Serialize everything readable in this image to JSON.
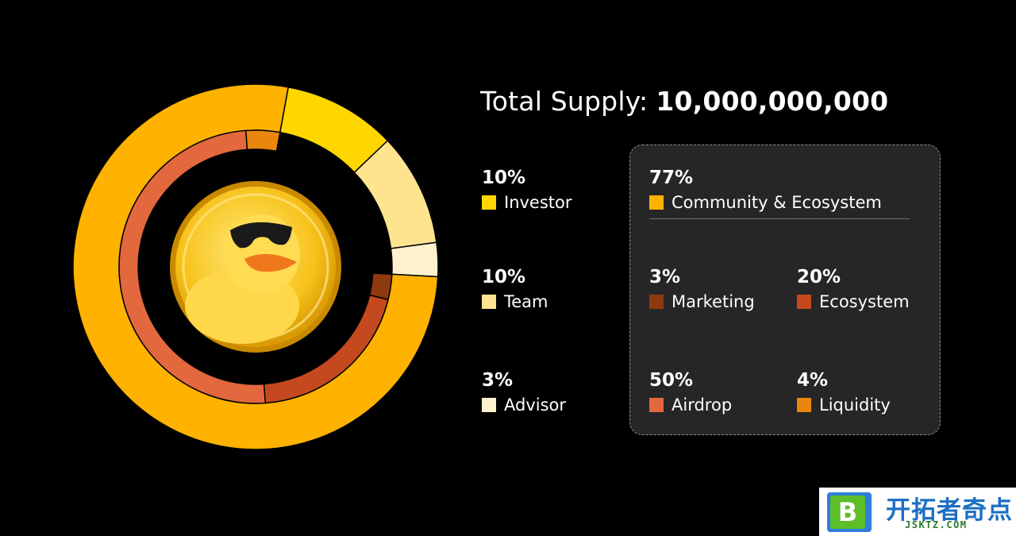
{
  "header": {
    "title_label": "Total Supply:",
    "title_value": "10,000,000,000"
  },
  "chart_data": {
    "type": "pie",
    "subtype": "nested-donut",
    "title": "Total Supply: 10,000,000,000",
    "outer_ring": [
      {
        "name": "Investor",
        "value": 10,
        "label": "10%",
        "color": "#FFD600"
      },
      {
        "name": "Team",
        "value": 10,
        "label": "10%",
        "color": "#FFE48F"
      },
      {
        "name": "Advisor",
        "value": 3,
        "label": "3%",
        "color": "#FFF1CE"
      },
      {
        "name": "Community & Ecosystem",
        "value": 77,
        "label": "77%",
        "color": "#FFB200"
      }
    ],
    "inner_ring": {
      "parent": "Community & Ecosystem",
      "segments": [
        {
          "name": "Marketing",
          "value": 3,
          "label": "3%",
          "color": "#8E3A0E"
        },
        {
          "name": "Ecosystem",
          "value": 20,
          "label": "20%",
          "color": "#C4491E"
        },
        {
          "name": "Airdrop",
          "value": 50,
          "label": "50%",
          "color": "#E3683E"
        },
        {
          "name": "Liquidity",
          "value": 4,
          "label": "4%",
          "color": "#E8860D"
        }
      ]
    },
    "legend_position": "right"
  },
  "legend": {
    "investor": {
      "pct": "10%",
      "label": "Investor",
      "color": "#FFD600"
    },
    "team": {
      "pct": "10%",
      "label": "Team",
      "color": "#FFE48F"
    },
    "advisor": {
      "pct": "3%",
      "label": "Advisor",
      "color": "#FFF1CE"
    },
    "community": {
      "pct": "77%",
      "label": "Community & Ecosystem",
      "color": "#FFB200"
    },
    "marketing": {
      "pct": "3%",
      "label": "Marketing",
      "color": "#8E3A0E"
    },
    "ecosystem": {
      "pct": "20%",
      "label": "Ecosystem",
      "color": "#C4491E"
    },
    "airdrop": {
      "pct": "50%",
      "label": "Airdrop",
      "color": "#E3683E"
    },
    "liquidity": {
      "pct": "4%",
      "label": "Liquidity",
      "color": "#E8860D"
    }
  },
  "watermark": {
    "badge": "B",
    "name": "开拓者奇点",
    "url": "JSKTZ.COM"
  }
}
